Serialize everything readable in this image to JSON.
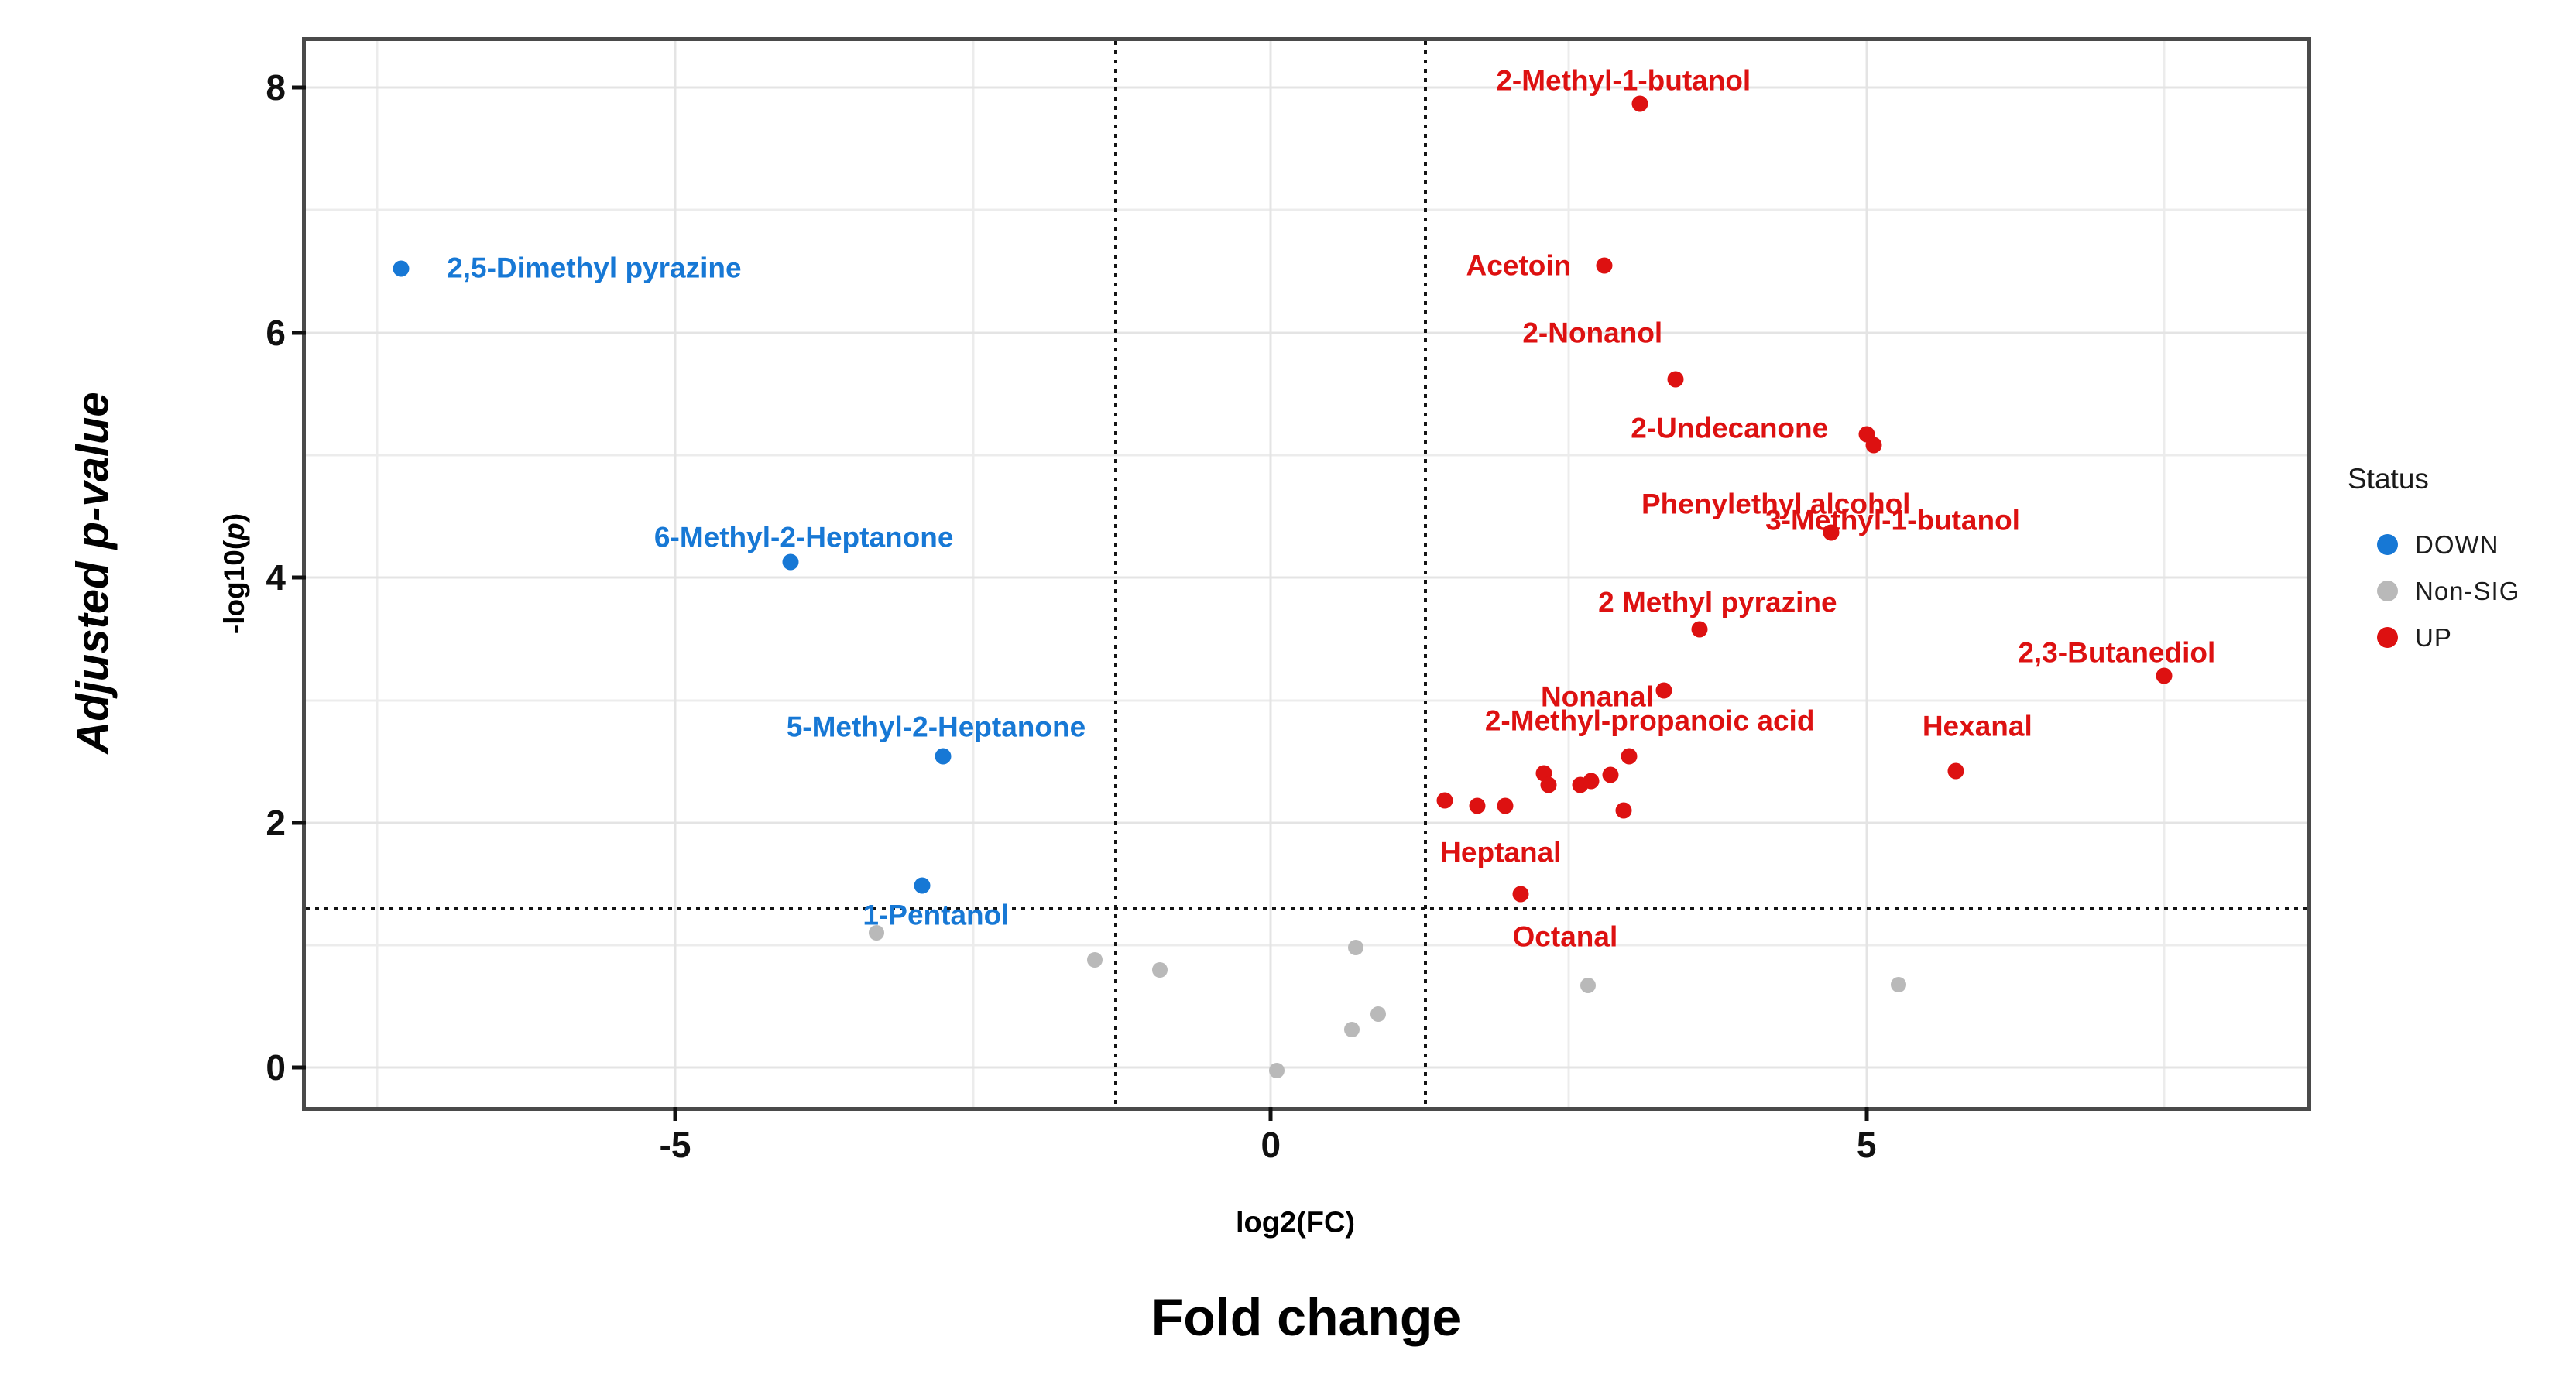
{
  "figure": {
    "y_axis_title": "Adjusted p-value",
    "y_axis_inner_label_pre": "-log10(",
    "y_axis_inner_label_p": "p",
    "y_axis_inner_label_post": ")",
    "x_axis_inner_label": "log2(FC)",
    "x_axis_title": "Fold change"
  },
  "legend": {
    "title": "Status",
    "items": [
      {
        "label": "DOWN",
        "color": "#1778d5"
      },
      {
        "label": "Non-SIG",
        "color": "#b9b9b9"
      },
      {
        "label": "UP",
        "color": "#dd1111"
      }
    ]
  },
  "chart_data": {
    "type": "scatter",
    "title": "",
    "xlabel": "log2(FC)",
    "ylabel": "-log10(p)",
    "x_range": [
      -8.1,
      8.7
    ],
    "y_range": [
      -0.32,
      8.38
    ],
    "x_ticks": [
      {
        "value": -5,
        "label": "-5"
      },
      {
        "value": 0,
        "label": "0"
      },
      {
        "value": 5,
        "label": "5"
      }
    ],
    "y_ticks": [
      {
        "value": 0,
        "label": "0"
      },
      {
        "value": 2,
        "label": "2"
      },
      {
        "value": 4,
        "label": "4"
      },
      {
        "value": 6,
        "label": "6"
      },
      {
        "value": 8,
        "label": "8"
      }
    ],
    "x_minor_gridlines": [
      -7.5,
      -2.5,
      2.5,
      7.5
    ],
    "y_minor_gridlines": [
      1,
      3,
      5,
      7
    ],
    "thresholds": {
      "vertical_x": [
        -1.3,
        1.3
      ],
      "horizontal_y": 1.3
    },
    "grid": true,
    "legend_position": "right",
    "series": [
      {
        "name": "DOWN",
        "color": "#1778d5",
        "dot_size": 21,
        "points": [
          [
            -7.3,
            6.52
          ],
          [
            -4.03,
            4.13
          ],
          [
            -2.75,
            2.54
          ],
          [
            -2.93,
            1.49
          ]
        ],
        "labels": [
          {
            "text": "2,5-Dimethyl pyrazine",
            "x": -5.68,
            "y": 6.53
          },
          {
            "text": "6-Methyl-2-Heptanone",
            "x": -3.92,
            "y": 4.33
          },
          {
            "text": "5-Methyl-2-Heptanone",
            "x": -2.81,
            "y": 2.78
          },
          {
            "text": "1-Pentanol",
            "x": -2.81,
            "y": 1.25
          }
        ]
      },
      {
        "name": "Non-SIG",
        "color": "#b9b9b9",
        "dot_size": 20,
        "points": [
          [
            -3.31,
            1.1
          ],
          [
            -1.48,
            0.88
          ],
          [
            -0.93,
            0.8
          ],
          [
            0.71,
            0.98
          ],
          [
            0.9,
            0.44
          ],
          [
            0.68,
            0.31
          ],
          [
            0.05,
            -0.02
          ],
          [
            2.66,
            0.67
          ],
          [
            5.27,
            0.68
          ]
        ],
        "labels": []
      },
      {
        "name": "UP",
        "color": "#dd1111",
        "dot_size": 21,
        "points": [
          [
            3.1,
            7.87
          ],
          [
            2.8,
            6.55
          ],
          [
            3.4,
            5.62
          ],
          [
            5.0,
            5.17
          ],
          [
            5.06,
            5.08
          ],
          [
            4.7,
            4.37
          ],
          [
            3.6,
            3.58
          ],
          [
            3.3,
            3.08
          ],
          [
            3.01,
            2.54
          ],
          [
            7.5,
            3.2
          ],
          [
            5.75,
            2.42
          ],
          [
            2.1,
            1.42
          ],
          [
            1.46,
            2.18
          ],
          [
            1.73,
            2.14
          ],
          [
            1.97,
            2.14
          ],
          [
            2.29,
            2.4
          ],
          [
            2.33,
            2.31
          ],
          [
            2.6,
            2.31
          ],
          [
            2.69,
            2.34
          ],
          [
            2.85,
            2.39
          ],
          [
            2.96,
            2.1
          ]
        ],
        "labels": [
          {
            "text": "2-Methyl-1-butanol",
            "x": 2.96,
            "y": 8.06
          },
          {
            "text": "Acetoin",
            "x": 2.08,
            "y": 6.55
          },
          {
            "text": "2-Nonanol",
            "x": 2.7,
            "y": 6.0
          },
          {
            "text": "2-Undecanone",
            "x": 3.85,
            "y": 5.22
          },
          {
            "text": "3-Methyl-1-butanol",
            "x": 5.22,
            "y": 4.47
          },
          {
            "text": "Phenylethyl alcohol",
            "x": 4.24,
            "y": 4.6
          },
          {
            "text": "2 Methyl pyrazine",
            "x": 3.75,
            "y": 3.8
          },
          {
            "text": "Nonanal",
            "x": 2.74,
            "y": 3.03
          },
          {
            "text": "2-Methyl-propanoic acid",
            "x": 3.18,
            "y": 2.83
          },
          {
            "text": "2,3-Butanediol",
            "x": 7.1,
            "y": 3.39
          },
          {
            "text": "Hexanal",
            "x": 5.93,
            "y": 2.79
          },
          {
            "text": "Heptanal",
            "x": 1.93,
            "y": 1.76
          },
          {
            "text": "Octanal",
            "x": 2.47,
            "y": 1.07
          }
        ]
      }
    ]
  }
}
